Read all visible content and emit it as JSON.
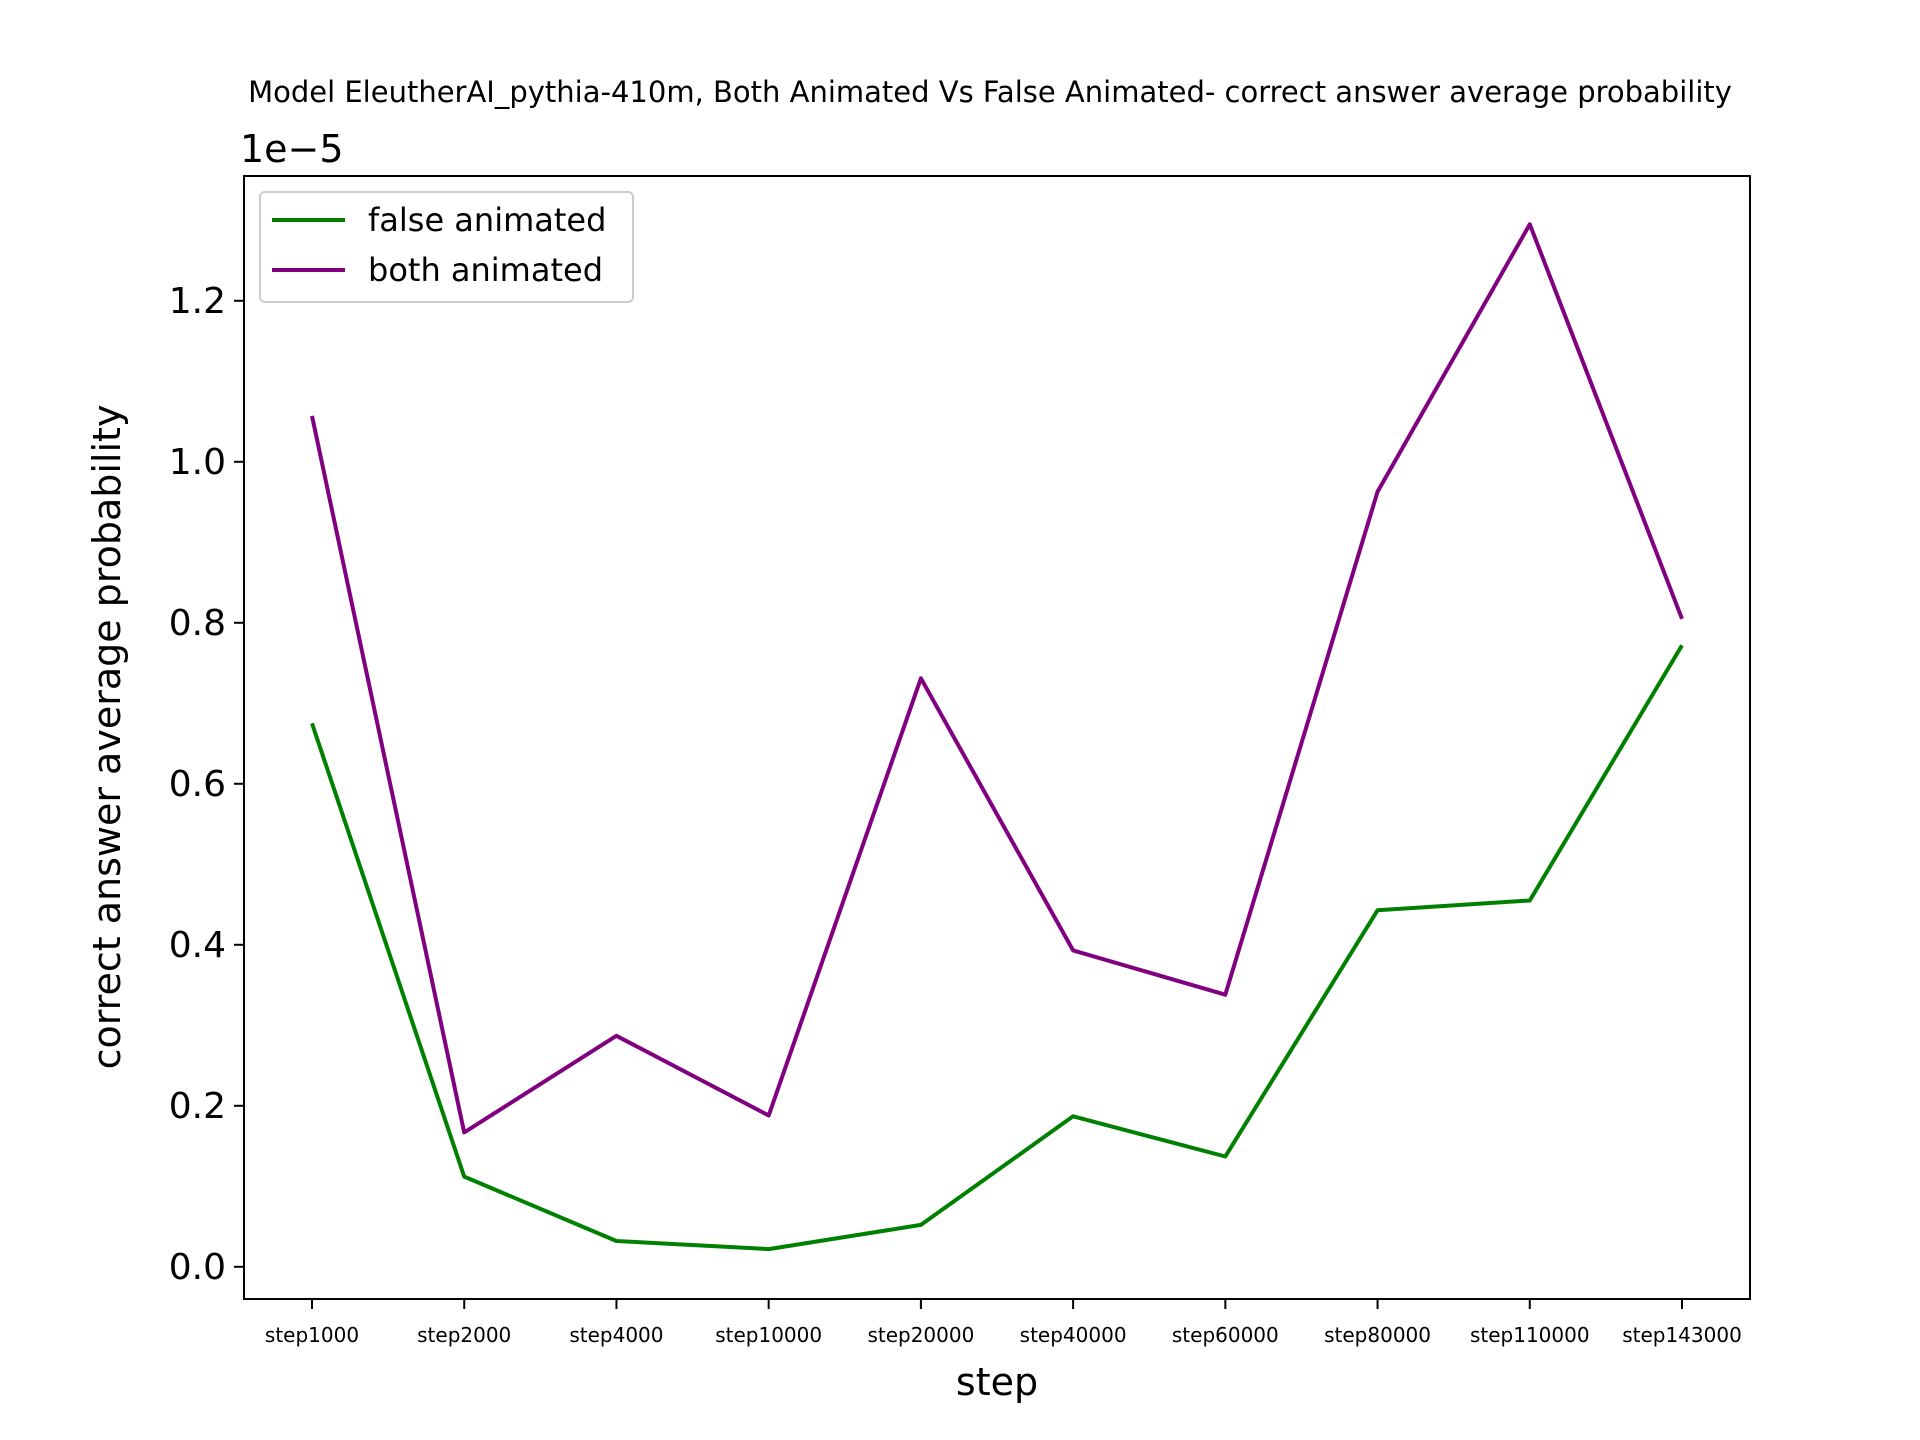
{
  "chart_data": {
    "type": "line",
    "title": "Model EleutherAI_pythia-410m, Both Animated Vs False Animated- correct answer average probability",
    "xlabel": "step",
    "ylabel": "correct answer average probability",
    "y_offset_text": "1e−5",
    "categories": [
      "step1000",
      "step2000",
      "step4000",
      "step10000",
      "step20000",
      "step40000",
      "step60000",
      "step80000",
      "step110000",
      "step143000"
    ],
    "ylim": [
      -0.04,
      1.355
    ],
    "yticks": [
      "0.0",
      "0.2",
      "0.4",
      "0.6",
      "0.8",
      "1.0",
      "1.2"
    ],
    "grid": false,
    "legend_position": "upper-left",
    "series": [
      {
        "name": "false animated",
        "color": "#008000",
        "values": [
          0.675,
          0.112,
          0.032,
          0.022,
          0.052,
          0.187,
          0.137,
          0.443,
          0.455,
          0.772
        ]
      },
      {
        "name": "both animated",
        "color": "#800080",
        "values": [
          1.057,
          0.167,
          0.287,
          0.188,
          0.731,
          0.393,
          0.338,
          0.963,
          1.295,
          0.805
        ]
      }
    ]
  }
}
